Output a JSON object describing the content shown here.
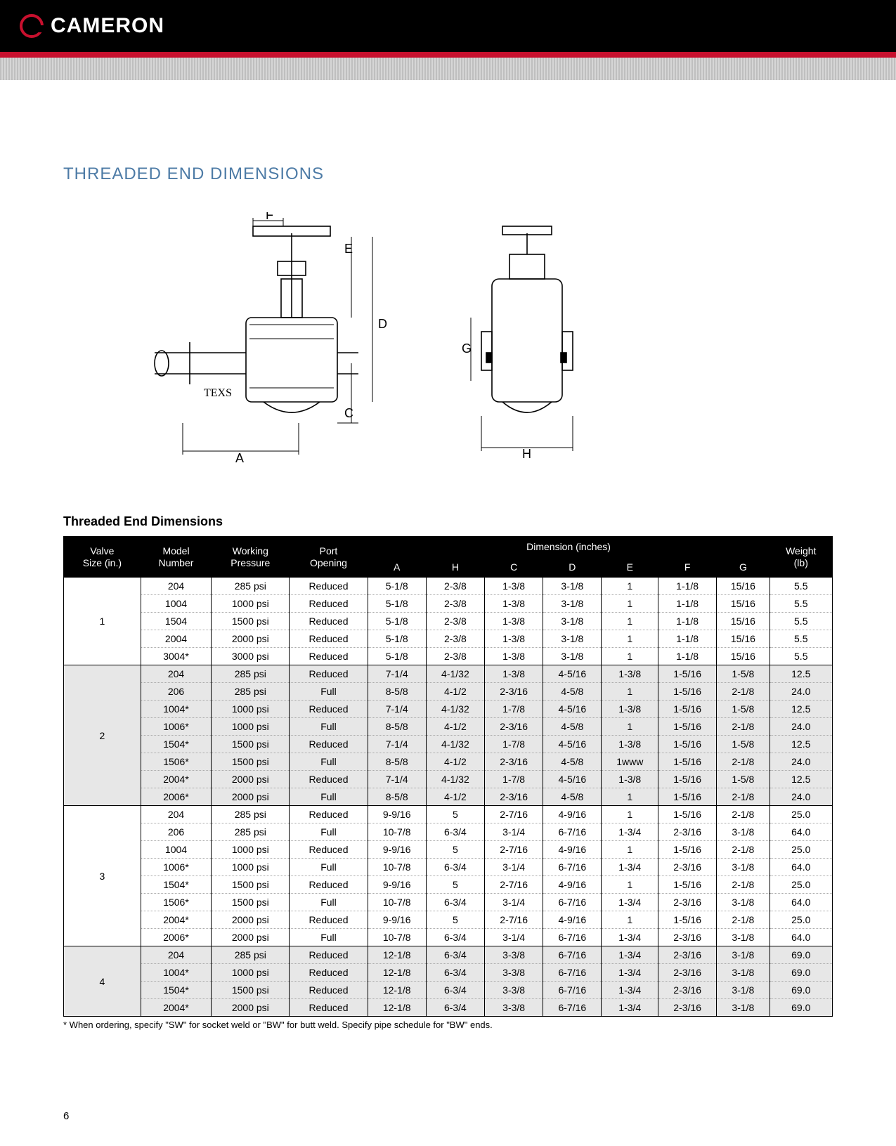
{
  "brand": "CAMERON",
  "section_title": "THREADED END DIMENSIONS",
  "diagram": {
    "labels": {
      "A": "A",
      "C": "C",
      "D": "D",
      "E": "E",
      "F": "F",
      "G": "G",
      "H": "H"
    },
    "body_text": "TEXS"
  },
  "table": {
    "title": "Threaded End Dimensions",
    "header": {
      "valve_size": {
        "l1": "Valve",
        "l2": "Size (in.)"
      },
      "model": {
        "l1": "Model",
        "l2": "Number"
      },
      "working": {
        "l1": "Working",
        "l2": "Pressure"
      },
      "port": {
        "l1": "Port",
        "l2": "Opening"
      },
      "dim_group": "Dimension (inches)",
      "dims": [
        "A",
        "H",
        "C",
        "D",
        "E",
        "F",
        "G"
      ],
      "weight": {
        "l1": "Weight",
        "l2": "(lb)"
      }
    },
    "groups": [
      {
        "size": "1",
        "alt": false,
        "rows": [
          {
            "model": "204",
            "wp": "285 psi",
            "port": "Reduced",
            "A": "5-1/8",
            "H": "2-3/8",
            "C": "1-3/8",
            "D": "3-1/8",
            "E": "1",
            "F": "1-1/8",
            "G": "15/16",
            "W": "5.5"
          },
          {
            "model": "1004",
            "wp": "1000 psi",
            "port": "Reduced",
            "A": "5-1/8",
            "H": "2-3/8",
            "C": "1-3/8",
            "D": "3-1/8",
            "E": "1",
            "F": "1-1/8",
            "G": "15/16",
            "W": "5.5"
          },
          {
            "model": "1504",
            "wp": "1500 psi",
            "port": "Reduced",
            "A": "5-1/8",
            "H": "2-3/8",
            "C": "1-3/8",
            "D": "3-1/8",
            "E": "1",
            "F": "1-1/8",
            "G": "15/16",
            "W": "5.5"
          },
          {
            "model": "2004",
            "wp": "2000 psi",
            "port": "Reduced",
            "A": "5-1/8",
            "H": "2-3/8",
            "C": "1-3/8",
            "D": "3-1/8",
            "E": "1",
            "F": "1-1/8",
            "G": "15/16",
            "W": "5.5"
          },
          {
            "model": "3004*",
            "wp": "3000 psi",
            "port": "Reduced",
            "A": "5-1/8",
            "H": "2-3/8",
            "C": "1-3/8",
            "D": "3-1/8",
            "E": "1",
            "F": "1-1/8",
            "G": "15/16",
            "W": "5.5"
          }
        ]
      },
      {
        "size": "2",
        "alt": true,
        "rows": [
          {
            "model": "204",
            "wp": "285 psi",
            "port": "Reduced",
            "A": "7-1/4",
            "H": "4-1/32",
            "C": "1-3/8",
            "D": "4-5/16",
            "E": "1-3/8",
            "F": "1-5/16",
            "G": "1-5/8",
            "W": "12.5"
          },
          {
            "model": "206",
            "wp": "285 psi",
            "port": "Full",
            "A": "8-5/8",
            "H": "4-1/2",
            "C": "2-3/16",
            "D": "4-5/8",
            "E": "1",
            "F": "1-5/16",
            "G": "2-1/8",
            "W": "24.0"
          },
          {
            "model": "1004*",
            "wp": "1000 psi",
            "port": "Reduced",
            "A": "7-1/4",
            "H": "4-1/32",
            "C": "1-7/8",
            "D": "4-5/16",
            "E": "1-3/8",
            "F": "1-5/16",
            "G": "1-5/8",
            "W": "12.5"
          },
          {
            "model": "1006*",
            "wp": "1000 psi",
            "port": "Full",
            "A": "8-5/8",
            "H": "4-1/2",
            "C": "2-3/16",
            "D": "4-5/8",
            "E": "1",
            "F": "1-5/16",
            "G": "2-1/8",
            "W": "24.0"
          },
          {
            "model": "1504*",
            "wp": "1500 psi",
            "port": "Reduced",
            "A": "7-1/4",
            "H": "4-1/32",
            "C": "1-7/8",
            "D": "4-5/16",
            "E": "1-3/8",
            "F": "1-5/16",
            "G": "1-5/8",
            "W": "12.5"
          },
          {
            "model": "1506*",
            "wp": "1500 psi",
            "port": "Full",
            "A": "8-5/8",
            "H": "4-1/2",
            "C": "2-3/16",
            "D": "4-5/8",
            "E": "1www",
            "F": "1-5/16",
            "G": "2-1/8",
            "W": "24.0"
          },
          {
            "model": "2004*",
            "wp": "2000 psi",
            "port": "Reduced",
            "A": "7-1/4",
            "H": "4-1/32",
            "C": "1-7/8",
            "D": "4-5/16",
            "E": "1-3/8",
            "F": "1-5/16",
            "G": "1-5/8",
            "W": "12.5"
          },
          {
            "model": "2006*",
            "wp": "2000 psi",
            "port": "Full",
            "A": "8-5/8",
            "H": "4-1/2",
            "C": "2-3/16",
            "D": "4-5/8",
            "E": "1",
            "F": "1-5/16",
            "G": "2-1/8",
            "W": "24.0"
          }
        ]
      },
      {
        "size": "3",
        "alt": false,
        "rows": [
          {
            "model": "204",
            "wp": "285 psi",
            "port": "Reduced",
            "A": "9-9/16",
            "H": "5",
            "C": "2-7/16",
            "D": "4-9/16",
            "E": "1",
            "F": "1-5/16",
            "G": "2-1/8",
            "W": "25.0"
          },
          {
            "model": "206",
            "wp": "285 psi",
            "port": "Full",
            "A": "10-7/8",
            "H": "6-3/4",
            "C": "3-1/4",
            "D": "6-7/16",
            "E": "1-3/4",
            "F": "2-3/16",
            "G": "3-1/8",
            "W": "64.0"
          },
          {
            "model": "1004",
            "wp": "1000 psi",
            "port": "Reduced",
            "A": "9-9/16",
            "H": "5",
            "C": "2-7/16",
            "D": "4-9/16",
            "E": "1",
            "F": "1-5/16",
            "G": "2-1/8",
            "W": "25.0"
          },
          {
            "model": "1006*",
            "wp": "1000 psi",
            "port": "Full",
            "A": "10-7/8",
            "H": "6-3/4",
            "C": "3-1/4",
            "D": "6-7/16",
            "E": "1-3/4",
            "F": "2-3/16",
            "G": "3-1/8",
            "W": "64.0"
          },
          {
            "model": "1504*",
            "wp": "1500 psi",
            "port": "Reduced",
            "A": "9-9/16",
            "H": "5",
            "C": "2-7/16",
            "D": "4-9/16",
            "E": "1",
            "F": "1-5/16",
            "G": "2-1/8",
            "W": "25.0"
          },
          {
            "model": "1506*",
            "wp": "1500 psi",
            "port": "Full",
            "A": "10-7/8",
            "H": "6-3/4",
            "C": "3-1/4",
            "D": "6-7/16",
            "E": "1-3/4",
            "F": "2-3/16",
            "G": "3-1/8",
            "W": "64.0"
          },
          {
            "model": "2004*",
            "wp": "2000 psi",
            "port": "Reduced",
            "A": "9-9/16",
            "H": "5",
            "C": "2-7/16",
            "D": "4-9/16",
            "E": "1",
            "F": "1-5/16",
            "G": "2-1/8",
            "W": "25.0"
          },
          {
            "model": "2006*",
            "wp": "2000 psi",
            "port": "Full",
            "A": "10-7/8",
            "H": "6-3/4",
            "C": "3-1/4",
            "D": "6-7/16",
            "E": "1-3/4",
            "F": "2-3/16",
            "G": "3-1/8",
            "W": "64.0"
          }
        ]
      },
      {
        "size": "4",
        "alt": true,
        "rows": [
          {
            "model": "204",
            "wp": "285 psi",
            "port": "Reduced",
            "A": "12-1/8",
            "H": "6-3/4",
            "C": "3-3/8",
            "D": "6-7/16",
            "E": "1-3/4",
            "F": "2-3/16",
            "G": "3-1/8",
            "W": "69.0"
          },
          {
            "model": "1004*",
            "wp": "1000 psi",
            "port": "Reduced",
            "A": "12-1/8",
            "H": "6-3/4",
            "C": "3-3/8",
            "D": "6-7/16",
            "E": "1-3/4",
            "F": "2-3/16",
            "G": "3-1/8",
            "W": "69.0"
          },
          {
            "model": "1504*",
            "wp": "1500 psi",
            "port": "Reduced",
            "A": "12-1/8",
            "H": "6-3/4",
            "C": "3-3/8",
            "D": "6-7/16",
            "E": "1-3/4",
            "F": "2-3/16",
            "G": "3-1/8",
            "W": "69.0"
          },
          {
            "model": "2004*",
            "wp": "2000 psi",
            "port": "Reduced",
            "A": "12-1/8",
            "H": "6-3/4",
            "C": "3-3/8",
            "D": "6-7/16",
            "E": "1-3/4",
            "F": "2-3/16",
            "G": "3-1/8",
            "W": "69.0"
          }
        ]
      }
    ]
  },
  "footnote": "* When ordering, specify \"SW\" for socket weld or \"BW\" for butt weld. Specify pipe schedule for \"BW\" ends.",
  "page_number": "6"
}
